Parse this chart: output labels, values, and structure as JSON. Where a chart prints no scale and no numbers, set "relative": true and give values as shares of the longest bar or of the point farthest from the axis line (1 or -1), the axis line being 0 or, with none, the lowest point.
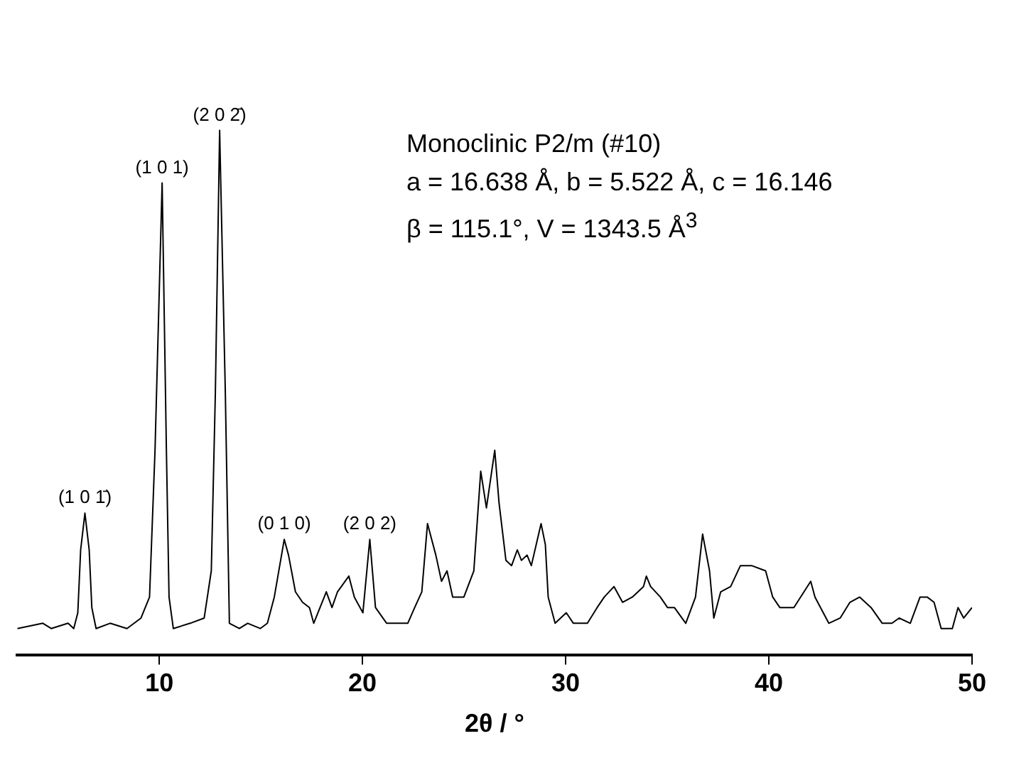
{
  "chart_data": {
    "type": "line",
    "relative": true,
    "xlabel": "2θ / °",
    "xlim": [
      3,
      50
    ],
    "xticks": [
      10,
      20,
      30,
      40,
      50
    ],
    "grid": false,
    "legend": false,
    "marker": "none",
    "line_style": "solid",
    "x": [
      3.02,
      4.27,
      4.68,
      5.51,
      5.79,
      5.99,
      6.13,
      6.34,
      6.55,
      6.68,
      6.89,
      7.58,
      8.41,
      9.1,
      9.52,
      9.79,
      10.14,
      10.35,
      10.48,
      10.69,
      11.52,
      12.21,
      12.56,
      12.76,
      12.97,
      13.25,
      13.45,
      13.94,
      14.35,
      14.97,
      15.32,
      15.66,
      16.15,
      16.36,
      16.7,
      17.05,
      17.39,
      17.6,
      18.22,
      18.5,
      18.77,
      19.33,
      19.6,
      20.02,
      20.36,
      20.64,
      21.19,
      22.23,
      22.57,
      22.92,
      23.2,
      23.61,
      23.89,
      24.16,
      24.44,
      24.99,
      25.48,
      25.82,
      26.1,
      26.51,
      26.72,
      27.06,
      27.34,
      27.62,
      27.82,
      28.1,
      28.31,
      28.79,
      29.0,
      29.14,
      29.48,
      30.03,
      30.38,
      31.07,
      31.55,
      31.9,
      32.38,
      32.8,
      33.28,
      33.83,
      33.97,
      34.18,
      34.66,
      35.01,
      35.35,
      35.91,
      36.39,
      36.74,
      37.08,
      37.29,
      37.63,
      38.12,
      38.6,
      39.15,
      39.84,
      40.19,
      40.54,
      41.23,
      42.06,
      42.27,
      42.95,
      43.51,
      43.99,
      44.47,
      45.03,
      45.58,
      46.06,
      46.41,
      46.96,
      47.44,
      47.79,
      48.13,
      48.48,
      49.03,
      49.31,
      49.59,
      50.0
    ],
    "series": [
      {
        "color": "#000000",
        "values": [
          0.05,
          0.06,
          0.05,
          0.06,
          0.05,
          0.08,
          0.2,
          0.27,
          0.2,
          0.09,
          0.05,
          0.06,
          0.05,
          0.07,
          0.11,
          0.39,
          0.9,
          0.39,
          0.11,
          0.05,
          0.06,
          0.07,
          0.16,
          0.5,
          1.0,
          0.5,
          0.06,
          0.05,
          0.06,
          0.05,
          0.06,
          0.11,
          0.22,
          0.19,
          0.12,
          0.1,
          0.09,
          0.06,
          0.12,
          0.09,
          0.12,
          0.15,
          0.11,
          0.08,
          0.22,
          0.09,
          0.06,
          0.06,
          0.09,
          0.12,
          0.25,
          0.19,
          0.14,
          0.16,
          0.11,
          0.11,
          0.16,
          0.35,
          0.28,
          0.39,
          0.29,
          0.18,
          0.17,
          0.2,
          0.18,
          0.19,
          0.17,
          0.25,
          0.21,
          0.11,
          0.06,
          0.08,
          0.06,
          0.06,
          0.09,
          0.11,
          0.13,
          0.1,
          0.11,
          0.13,
          0.15,
          0.13,
          0.11,
          0.09,
          0.09,
          0.06,
          0.11,
          0.23,
          0.16,
          0.07,
          0.12,
          0.13,
          0.17,
          0.17,
          0.16,
          0.11,
          0.09,
          0.09,
          0.14,
          0.11,
          0.06,
          0.07,
          0.1,
          0.11,
          0.09,
          0.06,
          0.06,
          0.07,
          0.06,
          0.11,
          0.11,
          0.1,
          0.05,
          0.05,
          0.09,
          0.07,
          0.09
        ]
      }
    ],
    "annotations": [
      {
        "text": "(1 0 1̄)",
        "x": 6.34,
        "y": 0.27
      },
      {
        "text": "(1 0 1)",
        "x": 10.14,
        "y": 0.9
      },
      {
        "text": "(2 0 2̄)",
        "x": 12.97,
        "y": 1.0
      },
      {
        "text": "(0 1 0)",
        "x": 16.15,
        "y": 0.22
      },
      {
        "text": "(2 0 2)",
        "x": 20.36,
        "y": 0.22
      },
      "Monoclinic P2/m (#10)",
      "a = 16.638 Å, b = 5.522 Å, c = 16.146",
      "β = 115.1°, V = 1343.5 Å$^{3}$"
    ]
  }
}
